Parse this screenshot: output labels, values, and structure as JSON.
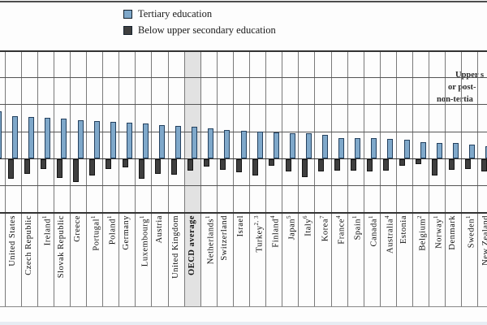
{
  "figure": {
    "legend": {
      "items": [
        {
          "label": "Tertiary education"
        },
        {
          "label": "Below upper secondary education"
        }
      ]
    },
    "annotation": {
      "line1": "Upper s",
      "line2": "or post-",
      "line3": "non-tertia"
    }
  },
  "colors": {
    "tertiary_bar": "#7fa8ca",
    "tertiary_border": "#24415f",
    "below_bar": "#3f3f3f",
    "below_border": "#141414",
    "highlight_band": "#e2e2e2"
  },
  "chart_data": {
    "type": "bar",
    "orientation": "vertical",
    "baseline_value": 100,
    "ylim": [
      0,
      300
    ],
    "gridline_step": 50,
    "grid": true,
    "legend_position": "top",
    "highlighted_category": "OECD average",
    "note": "first and last columns are clipped by the image edges",
    "categories": [
      "",
      "United States",
      "Czech Republic",
      "Ireland",
      "Slovak Republic",
      "Greece",
      "Portugal",
      "Poland",
      "Germany",
      "Luxembourg",
      "Austria",
      "United Kingdom",
      "OECD average",
      "Netherlands",
      "Switzerland",
      "Israel",
      "Turkey",
      "Finland",
      "Japan",
      "Italy",
      "Korea",
      "France",
      "Spain",
      "Canada",
      "Australia",
      "Estonia",
      "Belgium",
      "Norway",
      "Denmark",
      "Sweden",
      "New Zealand"
    ],
    "category_superscripts": [
      "",
      "",
      "",
      "1",
      "",
      "",
      "1",
      "1",
      "",
      "1",
      "",
      "",
      "",
      "1",
      "",
      "",
      "2, 3",
      "4",
      "5",
      "6",
      "7",
      "4",
      "1",
      "1",
      "4",
      "",
      "2",
      "1",
      "",
      "1",
      ""
    ],
    "series": [
      {
        "name": "Tertiary education",
        "values": [
          187,
          178,
          176,
          175,
          173,
          171,
          169,
          168,
          166,
          164,
          162,
          160,
          158,
          155,
          153,
          151,
          150,
          148,
          147,
          146,
          144,
          138,
          137,
          137,
          136,
          134,
          130,
          129,
          128,
          126,
          122
        ]
      },
      {
        "name": "Below upper secondary education",
        "values": [
          null,
          63,
          73,
          82,
          65,
          58,
          70,
          81,
          85,
          64,
          73,
          71,
          78,
          86,
          80,
          76,
          69,
          87,
          77,
          66,
          77,
          78,
          79,
          77,
          79,
          88,
          90,
          70,
          80,
          82,
          77
        ]
      }
    ]
  }
}
